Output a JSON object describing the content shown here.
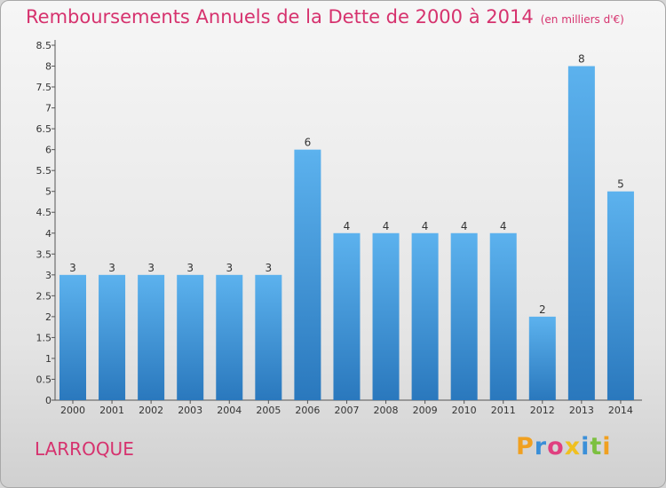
{
  "chart_data": {
    "type": "bar",
    "title": "Remboursements Annuels de la Dette de 2000 à 2014",
    "subtitle": "(en milliers d'€)",
    "categories": [
      "2000",
      "2001",
      "2002",
      "2003",
      "2004",
      "2005",
      "2006",
      "2007",
      "2008",
      "2009",
      "2010",
      "2011",
      "2012",
      "2013",
      "2014"
    ],
    "values": [
      3,
      3,
      3,
      3,
      3,
      3,
      6,
      4,
      4,
      4,
      4,
      4,
      2,
      8,
      5
    ],
    "ylim": [
      0,
      8.5
    ],
    "yticks": [
      0,
      0.5,
      1,
      1.5,
      2,
      2.5,
      3,
      3.5,
      4,
      4.5,
      5,
      5.5,
      6,
      6.5,
      7,
      7.5,
      8,
      8.5
    ],
    "grid": false,
    "bar_color": "#4a9fe0"
  },
  "footer": {
    "commune": "LARROQUE",
    "logo": "Proxiti"
  }
}
